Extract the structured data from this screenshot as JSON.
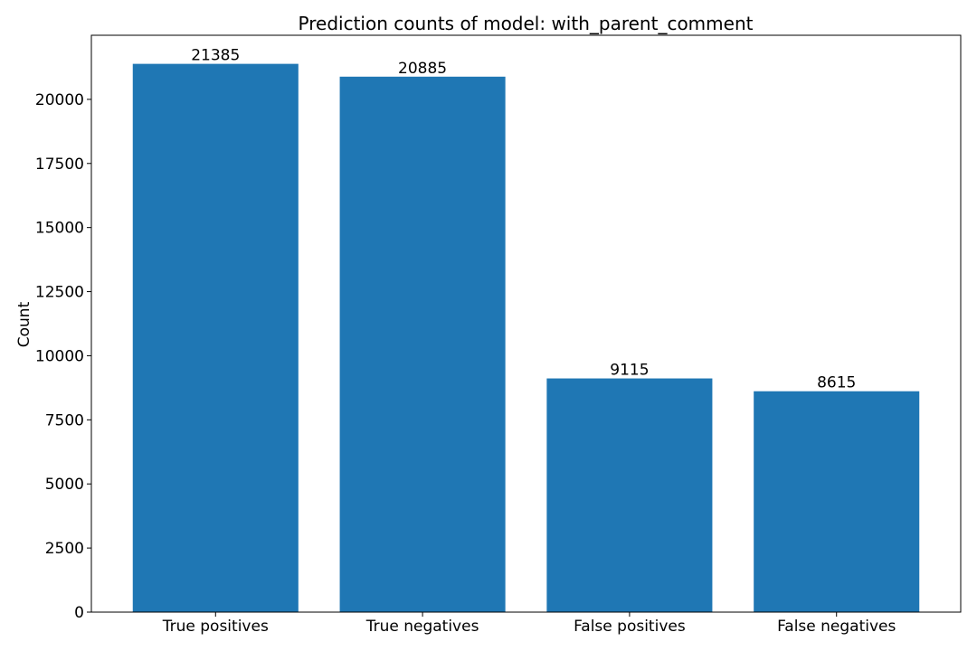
{
  "chart_data": {
    "type": "bar",
    "title": "Prediction counts of model: with_parent_comment",
    "xlabel": "",
    "ylabel": "Count",
    "categories": [
      "True positives",
      "True negatives",
      "False positives",
      "False negatives"
    ],
    "values": [
      21385,
      20885,
      9115,
      8615
    ],
    "ylim": [
      0,
      22500
    ],
    "yticks": [
      0,
      2500,
      5000,
      7500,
      10000,
      12500,
      15000,
      17500,
      20000
    ],
    "grid": false,
    "bar_color": "#1f77b4"
  }
}
